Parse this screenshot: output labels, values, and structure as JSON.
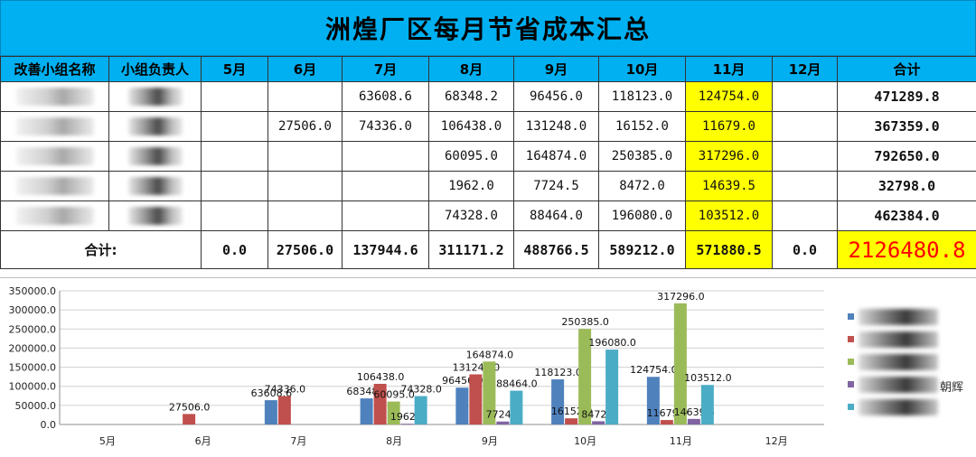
{
  "title": "洲煌厂区每月节省成本汇总",
  "table": {
    "headers": [
      "改善小组名称",
      "小组负责人",
      "5月",
      "6月",
      "7月",
      "8月",
      "9月",
      "10月",
      "11月",
      "12月",
      "合计"
    ],
    "rows": [
      {
        "name_suffix": "",
        "leader_suffix": "",
        "cells": [
          "",
          "",
          "63608.6",
          "68348.2",
          "96456.0",
          "118123.0",
          "124754.0",
          ""
        ],
        "total": "471289.8"
      },
      {
        "name_suffix": "",
        "leader_suffix": "",
        "cells": [
          "",
          "27506.0",
          "74336.0",
          "106438.0",
          "131248.0",
          "16152.0",
          "11679.0",
          ""
        ],
        "total": "367359.0"
      },
      {
        "name_suffix": "",
        "leader_suffix": "",
        "cells": [
          "",
          "",
          "",
          "60095.0",
          "164874.0",
          "250385.0",
          "317296.0",
          ""
        ],
        "total": "792650.0"
      },
      {
        "name_suffix": "",
        "leader_suffix": "",
        "cells": [
          "",
          "",
          "",
          "1962.0",
          "7724.5",
          "8472.0",
          "14639.5",
          ""
        ],
        "total": "32798.0"
      },
      {
        "name_suffix": "",
        "leader_suffix": "",
        "cells": [
          "",
          "",
          "",
          "74328.0",
          "88464.0",
          "196080.0",
          "103512.0",
          ""
        ],
        "total": "462384.0"
      }
    ],
    "total_label": "合计:",
    "totals": [
      "0.0",
      "27506.0",
      "137944.6",
      "311171.2",
      "488766.5",
      "589212.0",
      "571880.5",
      "0.0"
    ],
    "grand_total": "2126480.8"
  },
  "chart_data": {
    "type": "bar",
    "categories": [
      "5月",
      "6月",
      "7月",
      "8月",
      "9月",
      "10月",
      "11月",
      "12月"
    ],
    "series": [
      {
        "color": "#4f81bd",
        "values": [
          null,
          null,
          63608.6,
          68348.2,
          96456.0,
          118123.0,
          124754.0,
          null
        ]
      },
      {
        "color": "#c0504d",
        "values": [
          null,
          27506.0,
          74336.0,
          106438.0,
          131248.0,
          16152.0,
          11679.0,
          null
        ]
      },
      {
        "color": "#9bbb59",
        "values": [
          null,
          null,
          null,
          60095.0,
          164874.0,
          250385.0,
          317296.0,
          null
        ]
      },
      {
        "color": "#8064a2",
        "values": [
          null,
          null,
          null,
          1962.0,
          7724.5,
          8472.0,
          14639.5,
          null
        ]
      },
      {
        "color": "#4bacc6",
        "values": [
          null,
          null,
          null,
          74328.0,
          88464.0,
          196080.0,
          103512.0,
          null
        ]
      }
    ],
    "ylim": [
      0,
      350000
    ],
    "yticks": [
      "0.0",
      "50000.0",
      "100000.0",
      "150000.0",
      "200000.0",
      "250000.0",
      "300000.0",
      "350000.0"
    ],
    "grid": true,
    "legend_position": "right",
    "legend_visible_suffix": "朝辉"
  }
}
